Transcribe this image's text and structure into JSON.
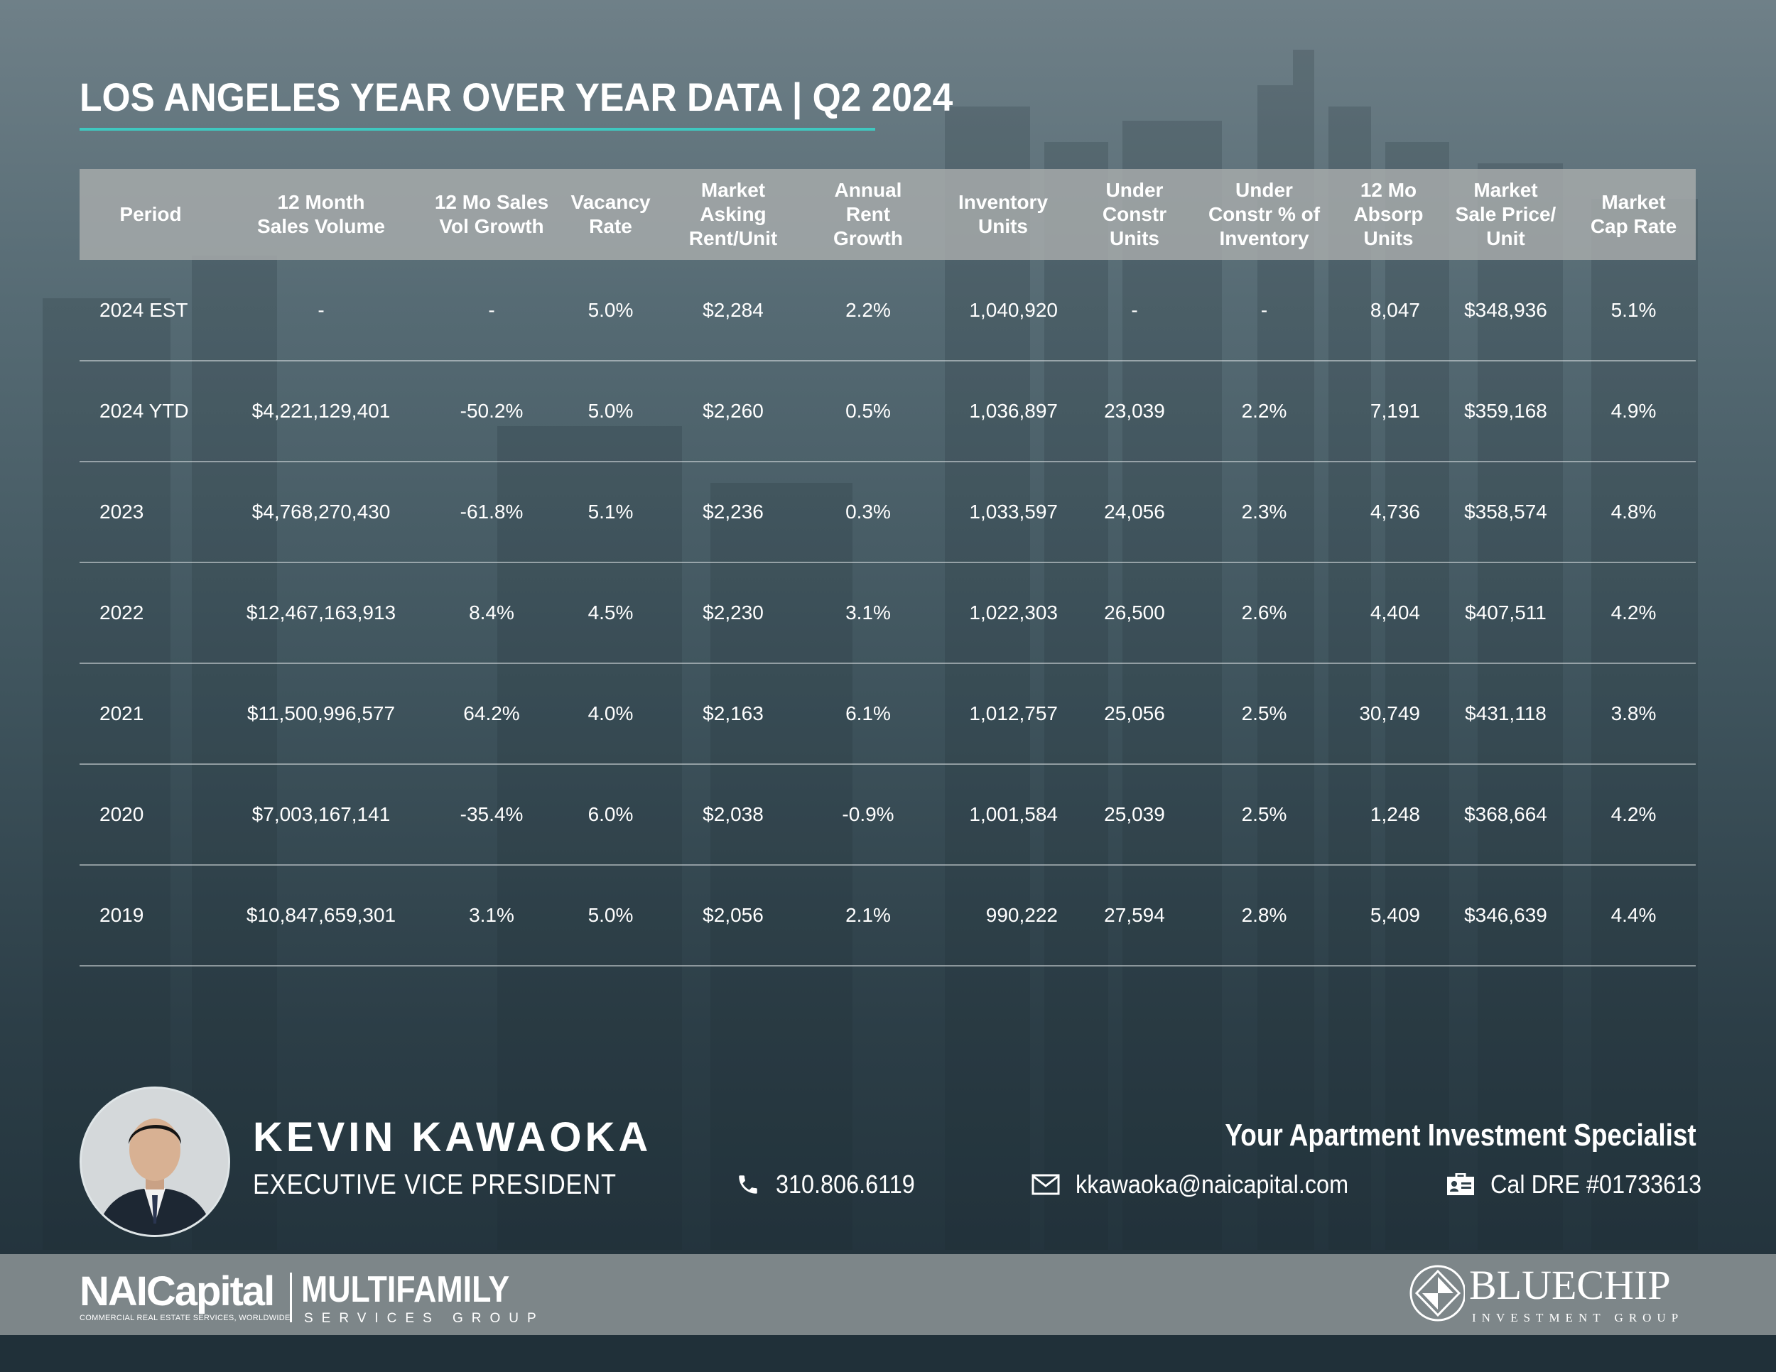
{
  "header": {
    "title": "LOS ANGELES YEAR OVER YEAR DATA | Q2 2024"
  },
  "table": {
    "columns": [
      [
        "Period"
      ],
      [
        "12 Month",
        "Sales Volume"
      ],
      [
        "12 Mo Sales",
        "Vol Growth"
      ],
      [
        "Vacancy",
        "Rate"
      ],
      [
        "Market",
        "Asking",
        "Rent/Unit"
      ],
      [
        "Annual",
        "Rent",
        "Growth"
      ],
      [
        "Inventory",
        "Units"
      ],
      [
        "Under",
        "Constr",
        "Units"
      ],
      [
        "Under",
        "Constr % of",
        "Inventory"
      ],
      [
        "12 Mo",
        "Absorp",
        "Units"
      ],
      [
        "Market",
        "Sale Price/",
        "Unit"
      ],
      [
        "Market",
        "Cap Rate"
      ]
    ],
    "rows": [
      [
        "2024 EST",
        "-",
        "-",
        "5.0%",
        "$2,284",
        "2.2%",
        "1,040,920",
        "-",
        "-",
        "8,047",
        "$348,936",
        "5.1%"
      ],
      [
        "2024 YTD",
        "$4,221,129,401",
        "-50.2%",
        "5.0%",
        "$2,260",
        "0.5%",
        "1,036,897",
        "23,039",
        "2.2%",
        "7,191",
        "$359,168",
        "4.9%"
      ],
      [
        "2023",
        "$4,768,270,430",
        "-61.8%",
        "5.1%",
        "$2,236",
        "0.3%",
        "1,033,597",
        "24,056",
        "2.3%",
        "4,736",
        "$358,574",
        "4.8%"
      ],
      [
        "2022",
        "$12,467,163,913",
        "8.4%",
        "4.5%",
        "$2,230",
        "3.1%",
        "1,022,303",
        "26,500",
        "2.6%",
        "4,404",
        "$407,511",
        "4.2%"
      ],
      [
        "2021",
        "$11,500,996,577",
        "64.2%",
        "4.0%",
        "$2,163",
        "6.1%",
        "1,012,757",
        "25,056",
        "2.5%",
        "30,749",
        "$431,118",
        "3.8%"
      ],
      [
        "2020",
        "$7,003,167,141",
        "-35.4%",
        "6.0%",
        "$2,038",
        "-0.9%",
        "1,001,584",
        "25,039",
        "2.5%",
        "1,248",
        "$368,664",
        "4.2%"
      ],
      [
        "2019",
        "$10,847,659,301",
        "3.1%",
        "5.0%",
        "$2,056",
        "2.1%",
        "990,222",
        "27,594",
        "2.8%",
        "5,409",
        "$346,639",
        "4.4%"
      ]
    ]
  },
  "agent": {
    "name": "KEVIN KAWAOKA",
    "title": "EXECUTIVE VICE PRESIDENT",
    "tagline": "Your Apartment Investment Specialist",
    "phone": "310.806.6119",
    "email": "kkawaoka@naicapital.com",
    "license": "Cal DRE #01733613"
  },
  "footer": {
    "nai_logo": "NAICapital",
    "nai_tagline": "COMMERCIAL REAL ESTATE SERVICES, WORLDWIDE",
    "multifamily": "MULTIFAMILY",
    "multifamily_sub": "SERVICES GROUP",
    "bluechip": "BLUECHIP",
    "bluechip_sub": "INVESTMENT GROUP"
  },
  "colors": {
    "accent_rule": "#3fc8c0",
    "header_row": "#a8acac",
    "footer_bar": "#7d8689"
  }
}
